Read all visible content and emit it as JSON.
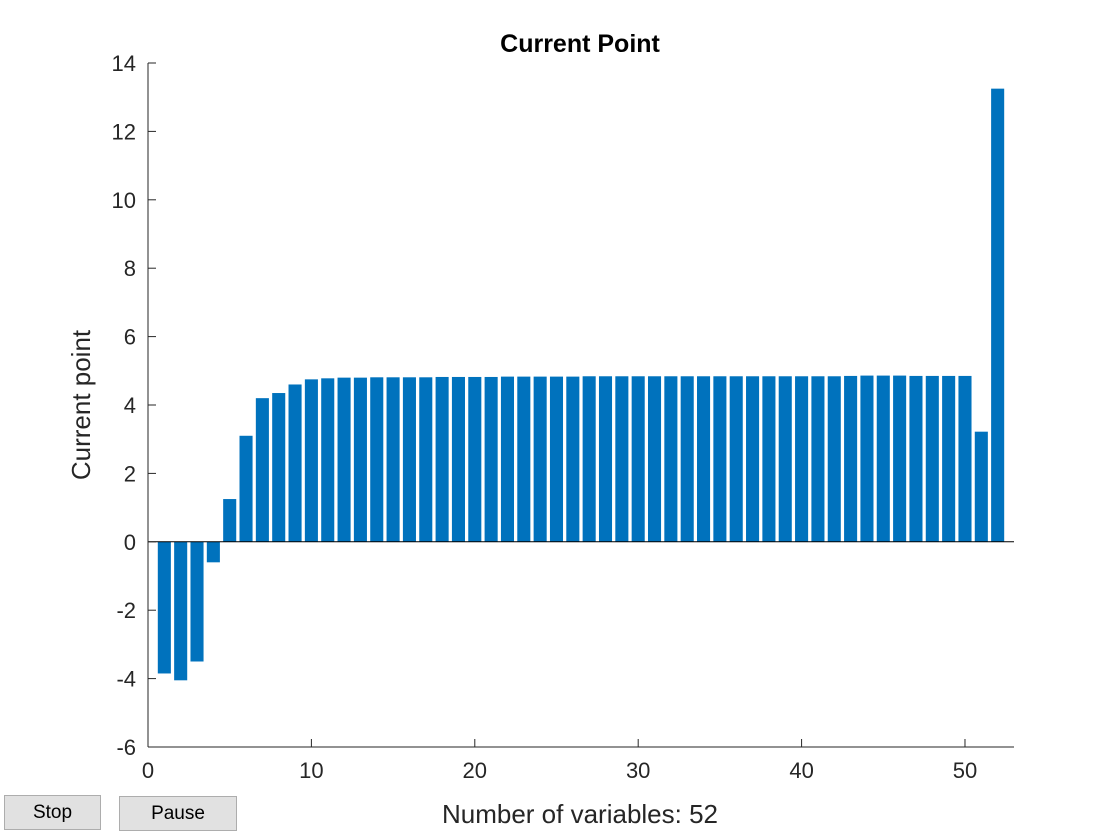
{
  "chart_data": {
    "type": "bar",
    "title": "Current Point",
    "xlabel": "Number of variables: 52",
    "ylabel": "Current point",
    "xlim": [
      0,
      53
    ],
    "ylim": [
      -6,
      14
    ],
    "xticks": [
      0,
      10,
      20,
      30,
      40,
      50
    ],
    "yticks": [
      -6,
      -4,
      -2,
      0,
      2,
      4,
      6,
      8,
      10,
      12,
      14
    ],
    "grid": false,
    "bar_color": "#0072bd",
    "x": [
      1,
      2,
      3,
      4,
      5,
      6,
      7,
      8,
      9,
      10,
      11,
      12,
      13,
      14,
      15,
      16,
      17,
      18,
      19,
      20,
      21,
      22,
      23,
      24,
      25,
      26,
      27,
      28,
      29,
      30,
      31,
      32,
      33,
      34,
      35,
      36,
      37,
      38,
      39,
      40,
      41,
      42,
      43,
      44,
      45,
      46,
      47,
      48,
      49,
      50,
      51,
      52
    ],
    "values": [
      -3.85,
      -4.05,
      -3.5,
      -0.6,
      1.25,
      3.1,
      4.2,
      4.35,
      4.6,
      4.75,
      4.78,
      4.8,
      4.8,
      4.81,
      4.81,
      4.81,
      4.81,
      4.82,
      4.82,
      4.82,
      4.82,
      4.83,
      4.83,
      4.83,
      4.83,
      4.83,
      4.84,
      4.84,
      4.84,
      4.84,
      4.84,
      4.84,
      4.84,
      4.84,
      4.84,
      4.84,
      4.84,
      4.84,
      4.84,
      4.84,
      4.84,
      4.84,
      4.85,
      4.86,
      4.86,
      4.86,
      4.85,
      4.85,
      4.85,
      4.85,
      3.22,
      13.25
    ]
  },
  "buttons": {
    "stop_label": "Stop",
    "pause_label": "Pause"
  }
}
